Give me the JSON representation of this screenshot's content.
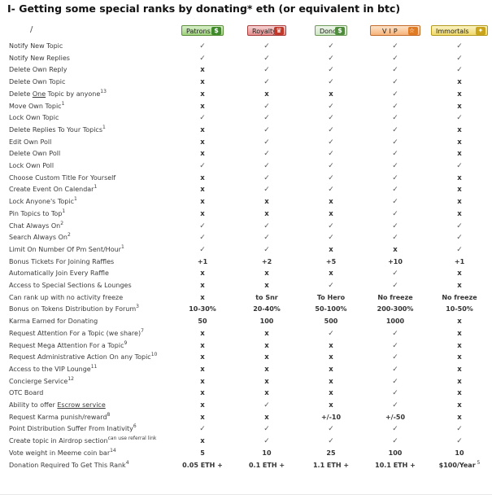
{
  "title": "I- Getting some special ranks by donating* eth (or equivalent in btc)",
  "corner": "/",
  "ranks": [
    {
      "name": "Patrons",
      "cls": "patrons",
      "icon": "$"
    },
    {
      "name": "Royalty",
      "cls": "royalty",
      "icon": "♛"
    },
    {
      "name": "Donor",
      "cls": "donor",
      "icon": "$"
    },
    {
      "name": "VIP",
      "cls": "vip",
      "icon": "☆"
    },
    {
      "name": "Immortals",
      "cls": "immortals",
      "icon": "✦"
    }
  ],
  "rows": [
    {
      "label": "Notify New Topic",
      "values": [
        "✓",
        "✓",
        "✓",
        "✓",
        "✓"
      ]
    },
    {
      "label": "Notify New Replies",
      "values": [
        "✓",
        "✓",
        "✓",
        "✓",
        "✓"
      ]
    },
    {
      "label": "Delete Own Reply",
      "values": [
        "x",
        "✓",
        "✓",
        "✓",
        "✓"
      ]
    },
    {
      "label": "Delete Own Topic",
      "values": [
        "x",
        "✓",
        "✓",
        "✓",
        "x"
      ]
    },
    {
      "label": "Delete One Topic by anyone",
      "sup": "13",
      "underline": "One",
      "values": [
        "x",
        "x",
        "x",
        "✓",
        "x"
      ]
    },
    {
      "label": "Move Own Topic",
      "sup": "1",
      "values": [
        "x",
        "✓",
        "✓",
        "✓",
        "x"
      ]
    },
    {
      "label": "Lock Own Topic",
      "values": [
        "✓",
        "✓",
        "✓",
        "✓",
        "✓"
      ]
    },
    {
      "label": "Delete Replies To Your Topics",
      "sup": "1",
      "values": [
        "x",
        "✓",
        "✓",
        "✓",
        "x"
      ]
    },
    {
      "label": "Edit Own Poll",
      "values": [
        "x",
        "✓",
        "✓",
        "✓",
        "x"
      ]
    },
    {
      "label": "Delete Own Poll",
      "values": [
        "x",
        "✓",
        "✓",
        "✓",
        "x"
      ]
    },
    {
      "label": "Lock Own Poll",
      "values": [
        "✓",
        "✓",
        "✓",
        "✓",
        "✓"
      ]
    },
    {
      "label": "Choose Custom Title For Yourself",
      "values": [
        "x",
        "✓",
        "✓",
        "✓",
        "x"
      ]
    },
    {
      "label": "Create Event On Calendar",
      "sup": "1",
      "values": [
        "x",
        "✓",
        "✓",
        "✓",
        "x"
      ]
    },
    {
      "label": "Lock Anyone's Topic",
      "sup": "1",
      "values": [
        "x",
        "x",
        "x",
        "✓",
        "x"
      ]
    },
    {
      "label": "Pin Topics to Top",
      "sup": "1",
      "values": [
        "x",
        "x",
        "x",
        "✓",
        "x"
      ]
    },
    {
      "label": "Chat Always On",
      "sup": "2",
      "values": [
        "✓",
        "✓",
        "✓",
        "✓",
        "✓"
      ]
    },
    {
      "label": "Search Always On",
      "sup": "2",
      "values": [
        "✓",
        "✓",
        "✓",
        "✓",
        "✓"
      ]
    },
    {
      "label": "Limit On Number Of Pm Sent/Hour",
      "sup": "1",
      "values": [
        "✓",
        "✓",
        "x",
        "x",
        "✓"
      ]
    },
    {
      "label": "Bonus Tickets For Joining Raffles",
      "values": [
        "+1",
        "+2",
        "+5",
        "+10",
        "+1"
      ]
    },
    {
      "label": "Automatically Join Every Raffle",
      "values": [
        "x",
        "x",
        "x",
        "✓",
        "x"
      ]
    },
    {
      "label": "Access to Special Sections & Lounges",
      "values": [
        "x",
        "x",
        "✓",
        "✓",
        "x"
      ]
    },
    {
      "label": "Can rank up with no activity freeze",
      "values": [
        "x",
        "to Snr",
        "To Hero",
        "No freeze",
        "No freeze"
      ]
    },
    {
      "label": "Bonus on Tokens Distribution by Forum",
      "sup": "3",
      "values": [
        "10-30%",
        "20-40%",
        "50-100%",
        "200-300%",
        "10-50%"
      ]
    },
    {
      "label": "Karma Earned for Donating",
      "values": [
        "50",
        "100",
        "500",
        "1000",
        "x"
      ]
    },
    {
      "label": "Request Attention For a Topic (we share)",
      "sup": "7",
      "values": [
        "x",
        "x",
        "✓",
        "✓",
        "x"
      ]
    },
    {
      "label": "Request Mega Attention For a Topic",
      "sup": "9",
      "values": [
        "x",
        "x",
        "x",
        "✓",
        "x"
      ]
    },
    {
      "label": "Request Administrative Action On any Topic",
      "sup": "10",
      "values": [
        "x",
        "x",
        "x",
        "✓",
        "x"
      ]
    },
    {
      "label": "Access to the VIP Lounge",
      "sup": "11",
      "values": [
        "x",
        "x",
        "x",
        "✓",
        "x"
      ]
    },
    {
      "label": "Concierge Service",
      "sup": "12",
      "values": [
        "x",
        "x",
        "x",
        "✓",
        "x"
      ]
    },
    {
      "label": "OTC Board",
      "values": [
        "x",
        "x",
        "x",
        "✓",
        "x"
      ]
    },
    {
      "label": "Ability to offer Escrow service",
      "underline": "Escrow service",
      "values": [
        "x",
        "✓",
        "x",
        "✓",
        "x"
      ]
    },
    {
      "label": "Request Karma punish/reward",
      "sup": "8",
      "values": [
        "x",
        "x",
        "+/-10",
        "+/-50",
        "x"
      ]
    },
    {
      "label": "Point Distribution Suffer From Inativity",
      "sup": "6",
      "values": [
        "✓",
        "✓",
        "✓",
        "✓",
        "✓"
      ]
    },
    {
      "label": "Create topic in Airdrop section",
      "sup": "can use referral link",
      "values": [
        "x",
        "✓",
        "✓",
        "✓",
        "✓"
      ]
    },
    {
      "label": "Vote weight in Meeme coin bar",
      "sup": "14",
      "values": [
        "5",
        "10",
        "25",
        "100",
        "10"
      ]
    },
    {
      "label": "Donation Required To Get This Rank",
      "sup": "4",
      "values": [
        "0.05 ETH +",
        "0.1 ETH +",
        "1.1 ETH +",
        "10.1 ETH +",
        "$100/Year"
      ],
      "lastSup": "5"
    }
  ]
}
